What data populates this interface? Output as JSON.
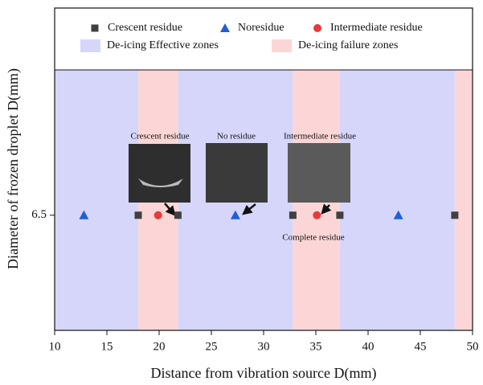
{
  "chart_data": {
    "type": "scatter",
    "xlabel": "Distance from vibration source D(mm)",
    "ylabel": "Diameter of frozen droplet D(mm)",
    "xlim": [
      10,
      50
    ],
    "xticks": [
      10,
      15,
      20,
      25,
      30,
      35,
      40,
      45,
      50
    ],
    "ylim": [
      6.0,
      7.4
    ],
    "yticks": [
      6.5
    ],
    "series": [
      {
        "name": "Crescent residue",
        "color": "#404040",
        "marker": "square",
        "x": [
          18.0,
          21.8,
          32.8,
          37.3,
          48.3
        ],
        "values": [
          6.5,
          6.5,
          6.5,
          6.5,
          6.5
        ]
      },
      {
        "name": "Noresidue",
        "color": "#1f5fd6",
        "marker": "triangle",
        "x": [
          12.8,
          27.3,
          42.9
        ],
        "values": [
          6.5,
          6.5,
          6.5
        ]
      },
      {
        "name": "Intermediate residue",
        "color": "#e83a3a",
        "marker": "circle",
        "x": [
          19.9,
          35.1
        ],
        "values": [
          6.5,
          6.5
        ]
      }
    ],
    "zones": [
      {
        "name": "De-icing Effective zones",
        "color": "#d6d6fb",
        "ranges": [
          [
            10,
            18.0
          ],
          [
            21.8,
            32.8
          ],
          [
            37.3,
            48.3
          ]
        ]
      },
      {
        "name": "De-icing failure zones",
        "color": "#fcd6d6",
        "ranges": [
          [
            18.0,
            21.8
          ],
          [
            32.8,
            37.3
          ],
          [
            48.3,
            50
          ]
        ]
      }
    ],
    "annotations": [
      "Crescent residue",
      "No residue",
      "Intermediate residue",
      "Complete residue"
    ]
  }
}
